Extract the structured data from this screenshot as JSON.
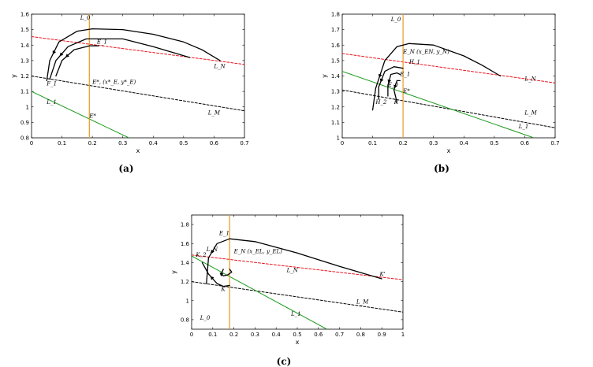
{
  "colors": {
    "red": "#e8141e",
    "black": "#000000",
    "green": "#1a9a1a",
    "orange": "#e89a20"
  },
  "chart_data": [
    {
      "type": "line",
      "caption": "(a)",
      "xlabel": "x",
      "ylabel": "y",
      "xlim": [
        0,
        0.7
      ],
      "ylim": [
        0.8,
        1.6
      ],
      "xticks": [
        0,
        0.1,
        0.2,
        0.3,
        0.4,
        0.5,
        0.6,
        0.7
      ],
      "yticks": [
        0.8,
        0.9,
        1.0,
        1.1,
        1.2,
        1.3,
        1.4,
        1.5,
        1.6
      ],
      "xtick_labels": [
        "0",
        "0.1",
        "0.2",
        "0.3",
        "0.4",
        "0.5",
        "0.6",
        "0.7"
      ],
      "ytick_labels": [
        "0.8",
        "0.9",
        "1",
        "1.1",
        "1.2",
        "1.3",
        "1.4",
        "1.5",
        "1.6"
      ],
      "series": [
        {
          "style": "red-dashed",
          "x": [
            0,
            0.7
          ],
          "y": [
            1.455,
            1.275
          ]
        },
        {
          "style": "black-dashed",
          "x": [
            0,
            0.7
          ],
          "y": [
            1.2,
            0.975
          ]
        },
        {
          "style": "green",
          "x": [
            0,
            0.32
          ],
          "y": [
            1.1,
            0.8
          ]
        },
        {
          "style": "orange",
          "x": [
            0.19,
            0.19
          ],
          "y": [
            0.8,
            1.6
          ]
        },
        {
          "style": "black",
          "x": [
            0.05,
            0.06,
            0.09,
            0.15,
            0.2,
            0.3,
            0.4,
            0.5,
            0.56,
            0.62
          ],
          "y": [
            1.17,
            1.3,
            1.42,
            1.49,
            1.505,
            1.5,
            1.47,
            1.42,
            1.37,
            1.3
          ]
        },
        {
          "style": "black",
          "x": [
            0.06,
            0.08,
            0.12,
            0.18,
            0.3,
            0.4,
            0.52
          ],
          "y": [
            1.18,
            1.3,
            1.39,
            1.44,
            1.44,
            1.39,
            1.32
          ]
        },
        {
          "style": "black",
          "x": [
            0.08,
            0.1,
            0.14,
            0.19,
            0.22
          ],
          "y": [
            1.2,
            1.3,
            1.37,
            1.395,
            1.395
          ]
        }
      ],
      "labels": [
        {
          "text": "L_0",
          "x": 0.16,
          "y": 1.565
        },
        {
          "text": "E_1",
          "x": 0.215,
          "y": 1.41
        },
        {
          "text": "L_N",
          "x": 0.6,
          "y": 1.25
        },
        {
          "text": "F_1",
          "x": 0.05,
          "y": 1.14
        },
        {
          "text": "E*, (x*_E, y*_E)",
          "x": 0.2,
          "y": 1.15
        },
        {
          "text": "L_1",
          "x": 0.05,
          "y": 1.02
        },
        {
          "text": "E*",
          "x": 0.19,
          "y": 0.93
        },
        {
          "text": "L_M",
          "x": 0.58,
          "y": 0.95
        }
      ]
    },
    {
      "type": "line",
      "caption": "(b)",
      "xlabel": "x",
      "ylabel": "y",
      "xlim": [
        0,
        0.7
      ],
      "ylim": [
        1.0,
        1.8
      ],
      "xticks": [
        0,
        0.1,
        0.2,
        0.3,
        0.4,
        0.5,
        0.6,
        0.7
      ],
      "yticks": [
        1.0,
        1.1,
        1.2,
        1.3,
        1.4,
        1.5,
        1.6,
        1.7,
        1.8
      ],
      "xtick_labels": [
        "0",
        "0.1",
        "0.2",
        "0.3",
        "0.4",
        "0.5",
        "0.6",
        "0.7"
      ],
      "ytick_labels": [
        "1",
        "1.1",
        "1.2",
        "1.3",
        "1.4",
        "1.5",
        "1.6",
        "1.7",
        "1.8"
      ],
      "series": [
        {
          "style": "red-dashed",
          "x": [
            0,
            0.7
          ],
          "y": [
            1.545,
            1.355
          ]
        },
        {
          "style": "black-dashed",
          "x": [
            0,
            0.7
          ],
          "y": [
            1.31,
            1.065
          ]
        },
        {
          "style": "green",
          "x": [
            0,
            0.63
          ],
          "y": [
            1.43,
            1.0
          ]
        },
        {
          "style": "orange",
          "x": [
            0.2,
            0.2
          ],
          "y": [
            1.0,
            1.8
          ]
        },
        {
          "style": "black",
          "x": [
            0.1,
            0.11,
            0.14,
            0.18,
            0.22,
            0.3,
            0.4,
            0.46,
            0.52
          ],
          "y": [
            1.18,
            1.32,
            1.5,
            1.59,
            1.61,
            1.6,
            1.53,
            1.47,
            1.4
          ]
        },
        {
          "style": "black",
          "x": [
            0.12,
            0.12,
            0.14,
            0.17,
            0.2
          ],
          "y": [
            1.25,
            1.33,
            1.43,
            1.46,
            1.45
          ]
        },
        {
          "style": "black",
          "x": [
            0.15,
            0.15,
            0.16,
            0.18,
            0.19
          ],
          "y": [
            1.27,
            1.34,
            1.41,
            1.42,
            1.41
          ]
        },
        {
          "style": "black",
          "x": [
            0.18,
            0.17,
            0.18,
            0.19
          ],
          "y": [
            1.23,
            1.31,
            1.37,
            1.37
          ]
        }
      ],
      "labels": [
        {
          "text": "L_0",
          "x": 0.16,
          "y": 1.755
        },
        {
          "text": "E_N (x_EN, y_N)",
          "x": 0.2,
          "y": 1.545
        },
        {
          "text": "H_1",
          "x": 0.22,
          "y": 1.48
        },
        {
          "text": "E_1",
          "x": 0.19,
          "y": 1.4
        },
        {
          "text": "L_N",
          "x": 0.6,
          "y": 1.37
        },
        {
          "text": "E_0",
          "x": 0.15,
          "y": 1.33
        },
        {
          "text": "E*",
          "x": 0.2,
          "y": 1.29
        },
        {
          "text": "H_2",
          "x": 0.11,
          "y": 1.22
        },
        {
          "text": "K",
          "x": 0.17,
          "y": 1.22
        },
        {
          "text": "L_M",
          "x": 0.6,
          "y": 1.15
        },
        {
          "text": "L_1",
          "x": 0.58,
          "y": 1.06
        }
      ]
    },
    {
      "type": "line",
      "caption": "(c)",
      "xlabel": "x",
      "ylabel": "y",
      "xlim": [
        0,
        1
      ],
      "ylim": [
        0.7,
        1.9
      ],
      "xticks": [
        0,
        0.1,
        0.2,
        0.3,
        0.4,
        0.5,
        0.6,
        0.7,
        0.8,
        0.9,
        1.0
      ],
      "yticks": [
        0.8,
        1.0,
        1.2,
        1.4,
        1.6,
        1.8
      ],
      "xtick_labels": [
        "0",
        "0.1",
        "0.2",
        "0.3",
        "0.4",
        "0.5",
        "0.6",
        "0.7",
        "0.8",
        "0.9",
        "1"
      ],
      "ytick_labels": [
        "0.8",
        "1",
        "1.2",
        "1.4",
        "1.6",
        "1.8"
      ],
      "series": [
        {
          "style": "red-dashed",
          "x": [
            0,
            1
          ],
          "y": [
            1.48,
            1.22
          ]
        },
        {
          "style": "black-dashed",
          "x": [
            0,
            1
          ],
          "y": [
            1.2,
            0.88
          ]
        },
        {
          "style": "green",
          "x": [
            0,
            0.64
          ],
          "y": [
            1.47,
            0.7
          ]
        },
        {
          "style": "orange",
          "x": [
            0.18,
            0.18
          ],
          "y": [
            0.7,
            1.9
          ]
        },
        {
          "style": "black",
          "x": [
            0.07,
            0.08,
            0.12,
            0.18,
            0.3,
            0.5,
            0.7,
            0.9
          ],
          "y": [
            1.18,
            1.45,
            1.6,
            1.65,
            1.62,
            1.5,
            1.36,
            1.23
          ]
        },
        {
          "style": "black",
          "x": [
            0.05,
            0.08,
            0.12,
            0.15,
            0.18
          ],
          "y": [
            1.4,
            1.28,
            1.18,
            1.15,
            1.16
          ]
        },
        {
          "style": "black",
          "x": [
            0.15,
            0.14,
            0.15,
            0.17,
            0.19,
            0.18
          ],
          "y": [
            1.33,
            1.28,
            1.26,
            1.27,
            1.3,
            1.33
          ]
        }
      ],
      "labels": [
        {
          "text": "E_1",
          "x": 0.13,
          "y": 1.69
        },
        {
          "text": "E_N (x_EL, y_EL)",
          "x": 0.2,
          "y": 1.5
        },
        {
          "text": "L_N",
          "x": 0.07,
          "y": 1.52
        },
        {
          "text": "K_2",
          "x": 0.02,
          "y": 1.46
        },
        {
          "text": "L_N",
          "x": 0.45,
          "y": 1.3
        },
        {
          "text": "K'",
          "x": 0.89,
          "y": 1.26
        },
        {
          "text": "K",
          "x": 0.14,
          "y": 1.1
        },
        {
          "text": "L_M",
          "x": 0.78,
          "y": 0.97
        },
        {
          "text": "L_0",
          "x": 0.04,
          "y": 0.8
        },
        {
          "text": "L_1",
          "x": 0.47,
          "y": 0.84
        }
      ]
    }
  ]
}
